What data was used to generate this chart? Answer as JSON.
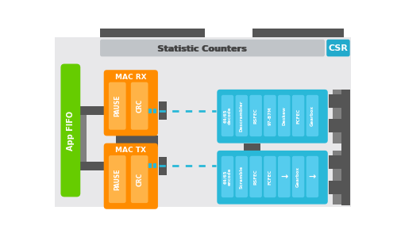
{
  "colors": {
    "white": "#ffffff",
    "bg": "#f2f2f2",
    "green": "#66cc00",
    "orange": "#ff8c00",
    "orange_light": "#ffb347",
    "blue": "#29b8d8",
    "blue_light": "#55ccee",
    "gray_dark": "#555555",
    "gray_med": "#808080",
    "gray_light": "#aaaaaa",
    "stat_bg": "#c0c4c8",
    "csr_blue": "#22aacc"
  },
  "fifo_label": "App FIFO",
  "stat_label": "Statistic Counters",
  "csr_label": "CSR",
  "mac_rx_label": "MAC RX",
  "mac_tx_label": "MAC TX",
  "rx_inner": [
    "PAUSE",
    "CRC"
  ],
  "tx_inner": [
    "PAUSE",
    "CRC"
  ],
  "rx_chain": [
    "64/65\ndecode",
    "Descrambler",
    "RSFEC",
    "97-B7M",
    "Deskew",
    "FCFEC",
    "Gearbox"
  ],
  "tx_chain": [
    "64/65\nencode",
    "Scramble",
    "RSFEC",
    "FCFEC",
    "→",
    "Gearbox",
    "→"
  ]
}
